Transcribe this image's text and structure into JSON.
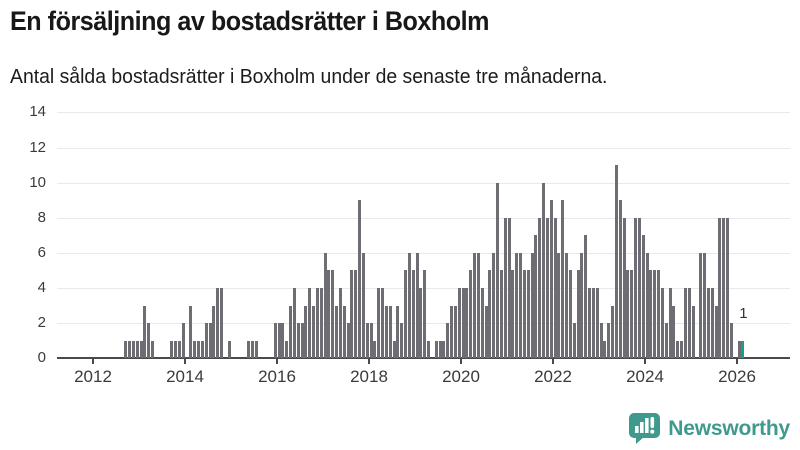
{
  "header": {
    "title": "En försäljning av bostadsrätter i Boxholm",
    "subtitle": "Antal sålda bostadsrätter i Boxholm under de senaste tre månaderna."
  },
  "chart_data": {
    "type": "bar",
    "title": "En försäljning av bostadsrätter i Boxholm",
    "subtitle": "Antal sålda bostadsrätter i Boxholm under de senaste tre månaderna.",
    "x_unit": "month",
    "x_start": "2012-01",
    "x_end": "2026-02",
    "x_tick_labels": [
      "2012",
      "2014",
      "2016",
      "2018",
      "2020",
      "2022",
      "2024",
      "2026"
    ],
    "y_ticks": [
      0,
      2,
      4,
      6,
      8,
      10,
      12,
      14
    ],
    "ylim": [
      0,
      14
    ],
    "grid": "horizontal",
    "legend": "none",
    "values": [
      0,
      0,
      0,
      0,
      0,
      0,
      0,
      0,
      1,
      1,
      1,
      1,
      1,
      3,
      2,
      1,
      0,
      0,
      0,
      0,
      1,
      1,
      1,
      2,
      0,
      3,
      1,
      1,
      1,
      2,
      2,
      3,
      4,
      4,
      0,
      1,
      0,
      0,
      0,
      0,
      1,
      1,
      1,
      0,
      0,
      0,
      0,
      2,
      2,
      2,
      1,
      3,
      4,
      2,
      2,
      3,
      4,
      3,
      4,
      4,
      6,
      5,
      5,
      3,
      4,
      3,
      2,
      5,
      5,
      9,
      6,
      2,
      2,
      1,
      4,
      4,
      3,
      3,
      1,
      3,
      2,
      5,
      6,
      5,
      6,
      4,
      5,
      1,
      0,
      1,
      1,
      1,
      2,
      3,
      3,
      4,
      4,
      4,
      5,
      6,
      6,
      4,
      3,
      5,
      6,
      10,
      5,
      8,
      8,
      5,
      6,
      6,
      5,
      5,
      6,
      7,
      8,
      10,
      8,
      9,
      8,
      6,
      9,
      6,
      5,
      2,
      5,
      6,
      7,
      4,
      4,
      4,
      2,
      1,
      2,
      3,
      11,
      9,
      8,
      5,
      5,
      8,
      8,
      7,
      6,
      5,
      5,
      5,
      4,
      2,
      4,
      3,
      1,
      1,
      4,
      4,
      3,
      0,
      6,
      6,
      4,
      4,
      3,
      8,
      8,
      8,
      2,
      0,
      1,
      1
    ],
    "highlight_last_value_label": "1",
    "colors": {
      "bar": "#6e6d73",
      "highlight": "#1a9c8f",
      "gridline": "#e9e9e9",
      "axis": "#4a4a4a",
      "label": "#333333"
    }
  },
  "logo": {
    "text": "Newsworthy",
    "color": "#3f9a8d"
  }
}
